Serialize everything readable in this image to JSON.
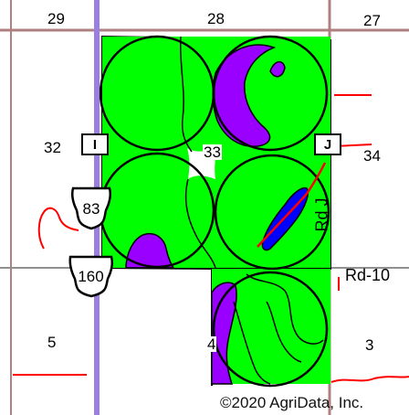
{
  "map": {
    "copyright": "©2020 AgriData, Inc.",
    "sections": {
      "s29": "29",
      "s28": "28",
      "s27": "27",
      "s32": "32",
      "s33": "33",
      "s34": "34",
      "s5": "5",
      "s4": "4",
      "s3": "3"
    },
    "markers": {
      "i": "I",
      "j": "J"
    },
    "highways": {
      "us83": "83",
      "us160": "160"
    },
    "roads": {
      "rd_j": "Rd J",
      "rd_10": "Rd-10"
    },
    "colors": {
      "field": "#00ff00",
      "purple_zone": "#9900ff",
      "blue_zone": "#0000ff",
      "highway_line": "#9a7fe0",
      "section_line": "#b08080",
      "red_line": "#ff0000"
    }
  }
}
